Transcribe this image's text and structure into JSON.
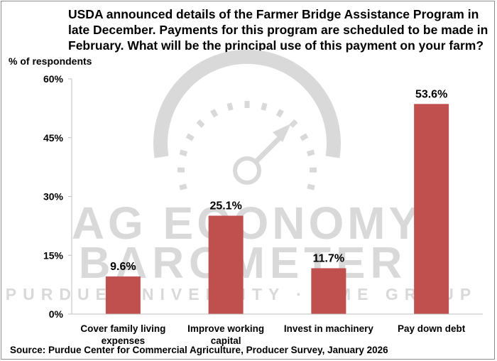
{
  "title_lines": [
    "USDA announced details of the Farmer Bridge Assistance Program in",
    "late December.  Payments for this program are scheduled to be made in",
    "February.  What will be the principal use of this payment on your farm?"
  ],
  "source": "Source: Purdue Center for Commercial Agriculture, Producer Survey, January 2026",
  "watermark": {
    "line1": "AG ECONOMY",
    "line2": "BAROMETER",
    "line3": "PURDUE UNIVERSITY · CME GROUP",
    "color": "#d9d9d9",
    "icon": "gauge-icon"
  },
  "colors": {
    "bar": "#c0504d",
    "axis": "#bfbfbf"
  },
  "chart_data": {
    "type": "bar",
    "ylabel": "% of respondents",
    "ylim": [
      0,
      60
    ],
    "yticks": [
      0,
      15,
      30,
      45,
      60
    ],
    "ytick_labels": [
      "0%",
      "15%",
      "30%",
      "45%",
      "60%"
    ],
    "categories": [
      [
        "Cover family living",
        "expenses"
      ],
      [
        "Improve working",
        "capital"
      ],
      [
        "Invest in machinery"
      ],
      [
        "Pay down debt"
      ]
    ],
    "values": [
      9.6,
      25.1,
      11.7,
      53.6
    ],
    "value_labels": [
      "9.6%",
      "25.1%",
      "11.7%",
      "53.6%"
    ],
    "grid": false,
    "legend": "none"
  }
}
